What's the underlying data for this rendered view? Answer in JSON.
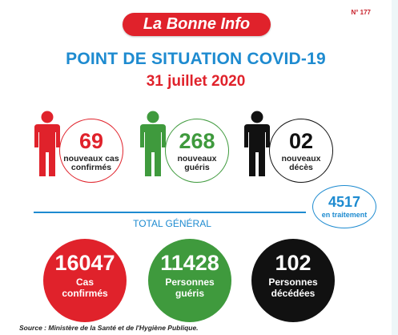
{
  "header": {
    "brand": "La Bonne Info",
    "issue": "N° 177",
    "title": "POINT DE SITUATION COVID-19",
    "date": "31 juillet 2020"
  },
  "daily": [
    {
      "value": "69",
      "label_line1": "nouveaux cas",
      "label_line2": "confirmés",
      "color": "#e0222b",
      "icon": "person-icon"
    },
    {
      "value": "268",
      "label_line1": "nouveaux",
      "label_line2": "guéris",
      "color": "#3f9a3d",
      "icon": "person-icon"
    },
    {
      "value": "02",
      "label_line1": "nouveaux",
      "label_line2": "décès",
      "color": "#111111",
      "icon": "person-icon"
    }
  ],
  "in_treatment": {
    "value": "4517",
    "label": "en traitement"
  },
  "totals": {
    "heading": "TOTAL GÉNÉRAL",
    "items": [
      {
        "value": "16047",
        "label_line1": "Cas",
        "label_line2": "confirmés",
        "color": "#e0222b"
      },
      {
        "value": "11428",
        "label_line1": "Personnes",
        "label_line2": "guéris",
        "color": "#3f9a3d"
      },
      {
        "value": "102",
        "label_line1": "Personnes",
        "label_line2": "décédées",
        "color": "#111111"
      }
    ]
  },
  "source": "Source : Ministère de la Santé et de l'Hygiène Publique.",
  "colors": {
    "blue": "#1e8bd0",
    "red": "#e0222b",
    "green": "#3f9a3d",
    "black": "#111111"
  }
}
